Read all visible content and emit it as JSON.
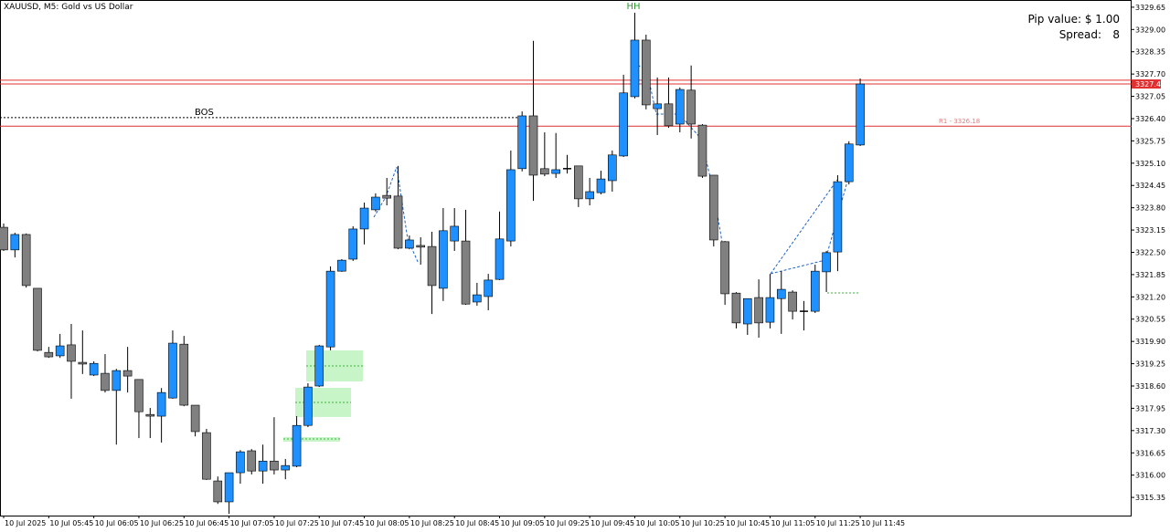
{
  "chart_data": {
    "type": "candlestick",
    "title": "XAUUSD, M5: Gold vs US Dollar",
    "pip_value": "Pip value: $ 1.00",
    "spread_label": "Spread:",
    "spread_value": 8,
    "swing_label": "HH",
    "bos": {
      "label": "BOS",
      "value": 3326.43
    },
    "levels": [
      {
        "label": "R1 - 3326.18",
        "value": 3326.18
      }
    ],
    "bid": 3327.41,
    "ask": 3327.52,
    "up_color": "#1e90ff",
    "down_color": "#808080",
    "grid": false,
    "ylim": [
      3314.82,
      3329.86
    ],
    "yticks": [
      3329.65,
      {
        "value": 3329,
        "label": "3329.00"
      },
      3328.35,
      {
        "value": 3327.7,
        "label": "3327.70"
      },
      3327.05,
      {
        "value": 3326.4,
        "label": "3326.40"
      },
      3325.75,
      {
        "value": 3325.1,
        "label": "3325.10"
      },
      3324.45,
      {
        "value": 3323.8,
        "label": "3323.80"
      },
      3323.15,
      {
        "value": 3322.5,
        "label": "3322.50"
      },
      3321.85,
      {
        "value": 3321.2,
        "label": "3321.20"
      },
      3320.55,
      {
        "value": 3319.9,
        "label": "3319.90"
      },
      3319.25,
      {
        "value": 3318.6,
        "label": "3318.60"
      },
      3317.95,
      {
        "value": 3317.3,
        "label": "3317.30"
      },
      3316.65,
      {
        "value": 3316,
        "label": "3316.00"
      },
      3315.35
    ],
    "categories": [
      "10 Jul 2025",
      null,
      null,
      null,
      "10 Jul 05:45",
      null,
      null,
      null,
      "10 Jul 06:05",
      null,
      null,
      null,
      "10 Jul 06:25",
      null,
      null,
      null,
      "10 Jul 06:45",
      null,
      null,
      null,
      "10 Jul 07:05",
      null,
      null,
      null,
      "10 Jul 07:25",
      null,
      null,
      null,
      "10 Jul 07:45",
      null,
      null,
      null,
      "10 Jul 08:05",
      null,
      null,
      null,
      "10 Jul 08:25",
      null,
      null,
      null,
      "10 Jul 08:45",
      null,
      null,
      null,
      "10 Jul 09:05",
      null,
      null,
      null,
      "10 Jul 09:25",
      null,
      null,
      null,
      "10 Jul 09:45",
      null,
      null,
      null,
      "10 Jul 10:05",
      null,
      null,
      null,
      "10 Jul 10:25",
      null,
      null,
      null,
      "10 Jul 10:45",
      null,
      null,
      null,
      "10 Jul 11:05",
      null,
      null,
      null,
      "10 Jul 11:25",
      null,
      null,
      null,
      "10 Jul 11:45"
    ],
    "open": [
      3323.23,
      3322.57,
      3323.02,
      3321.45,
      3319.58,
      3319.48,
      3319.8,
      3319.29,
      3318.92,
      3318.97,
      3318.47,
      3319.05,
      3318.79,
      3317.77,
      3317.72,
      3318.25,
      3319.82,
      3318.04,
      3317.24,
      3315.83,
      3315.22,
      3316.07,
      3316.71,
      3316.12,
      3316.41,
      3316.15,
      3316.26,
      3317.45,
      3318.6,
      3319.74,
      3321.95,
      3322.3,
      3323.18,
      3323.74,
      3324.16,
      3324.14,
      3322.62,
      3322.7,
      3322.67,
      3321.45,
      3322.83,
      3322.83,
      3321.05,
      3321.21,
      3321.71,
      3322.83,
      3324.94,
      3326.48,
      3324.94,
      3324.8,
      3324.94,
      3325.02,
      3324.06,
      3324.24,
      3324.59,
      3325.31,
      3327.04,
      3328.69,
      3326.69,
      3326.83,
      3326.24,
      3327.23,
      3326.21,
      3324.75,
      3322.81,
      3321.31,
      3320.41,
      3321.18,
      3320.46,
      3321.15,
      3321.34,
      3320.78,
      3320.78,
      3321.93,
      3322.51,
      3324.56,
      3325.63
    ],
    "high": [
      3323.34,
      3323.07,
      3323.05,
      3321.45,
      3319.74,
      3320.12,
      3320.41,
      3320.22,
      3319.32,
      3319.53,
      3319.1,
      3319.74,
      3318.79,
      3317.96,
      3318.54,
      3320.22,
      3320.06,
      3318.04,
      3317.35,
      3315.96,
      3316.07,
      3316.73,
      3316.76,
      3316.89,
      3317.69,
      3316.47,
      3317.72,
      3318.68,
      3319.8,
      3322.09,
      3322.3,
      3323.26,
      3323.95,
      3324.22,
      3324.67,
      3325.02,
      3322.99,
      3322.94,
      3323.1,
      3323.79,
      3323.79,
      3323.74,
      3321.61,
      3321.87,
      3323.69,
      3325.47,
      3326.61,
      3328.67,
      3326.0,
      3325.98,
      3325.34,
      3325.02,
      3324.67,
      3324.88,
      3325.47,
      3327.68,
      3329.49,
      3328.85,
      3327.6,
      3327.6,
      3327.31,
      3327.95,
      3326.24,
      3324.75,
      3322.83,
      3321.34,
      3321.15,
      3321.71,
      3321.87,
      3321.95,
      3321.39,
      3321.08,
      3322.14,
      3322.54,
      3324.75,
      3325.74,
      3327.57
    ],
    "low": [
      3322.54,
      3322.35,
      3321.47,
      3319.61,
      3319.42,
      3319.42,
      3318.23,
      3318.95,
      3318.89,
      3318.41,
      3316.89,
      3318.41,
      3317.08,
      3317.08,
      3316.95,
      3318.23,
      3318.01,
      3317.13,
      3315.86,
      3315.16,
      3314.87,
      3315.75,
      3316.02,
      3315.75,
      3316.02,
      3315.88,
      3316.23,
      3317.4,
      3318.57,
      3319.64,
      3321.93,
      3322.25,
      3322.73,
      3323.69,
      3323.87,
      3322.59,
      3322.59,
      3322.14,
      3320.7,
      3321.08,
      3322.54,
      3320.97,
      3320.94,
      3320.81,
      3321.69,
      3322.67,
      3324.86,
      3324.0,
      3324.72,
      3324.67,
      3324.8,
      3323.82,
      3323.87,
      3324.19,
      3324.27,
      3325.28,
      3326.99,
      3326.67,
      3325.92,
      3326.13,
      3326.0,
      3325.82,
      3324.67,
      3322.67,
      3320.97,
      3320.28,
      3320.09,
      3320.01,
      3320.28,
      3320.12,
      3320.54,
      3320.22,
      3320.73,
      3321.34,
      3321.95,
      3324.48,
      3325.6
    ],
    "close": [
      3322.57,
      3323.02,
      3321.53,
      3319.64,
      3319.45,
      3319.77,
      3319.32,
      3319.24,
      3319.26,
      3318.47,
      3319.05,
      3318.89,
      3317.85,
      3317.72,
      3318.41,
      3319.85,
      3318.04,
      3317.27,
      3315.88,
      3315.22,
      3316.07,
      3316.68,
      3316.12,
      3316.41,
      3316.15,
      3316.28,
      3317.45,
      3318.57,
      3319.77,
      3321.95,
      3322.27,
      3323.18,
      3323.79,
      3324.11,
      3324.08,
      3322.62,
      3322.86,
      3322.65,
      3321.53,
      3323.13,
      3323.26,
      3320.99,
      3321.26,
      3321.69,
      3322.89,
      3324.91,
      3326.48,
      3324.75,
      3324.78,
      3324.91,
      3324.94,
      3324.06,
      3324.27,
      3324.64,
      3325.34,
      3327.15,
      3328.69,
      3326.8,
      3326.83,
      3326.19,
      3327.25,
      3326.24,
      3324.72,
      3322.86,
      3321.29,
      3320.44,
      3321.15,
      3320.44,
      3321.18,
      3321.42,
      3320.78,
      3320.78,
      3321.95,
      3322.49,
      3324.56,
      3325.66,
      3327.41
    ]
  }
}
